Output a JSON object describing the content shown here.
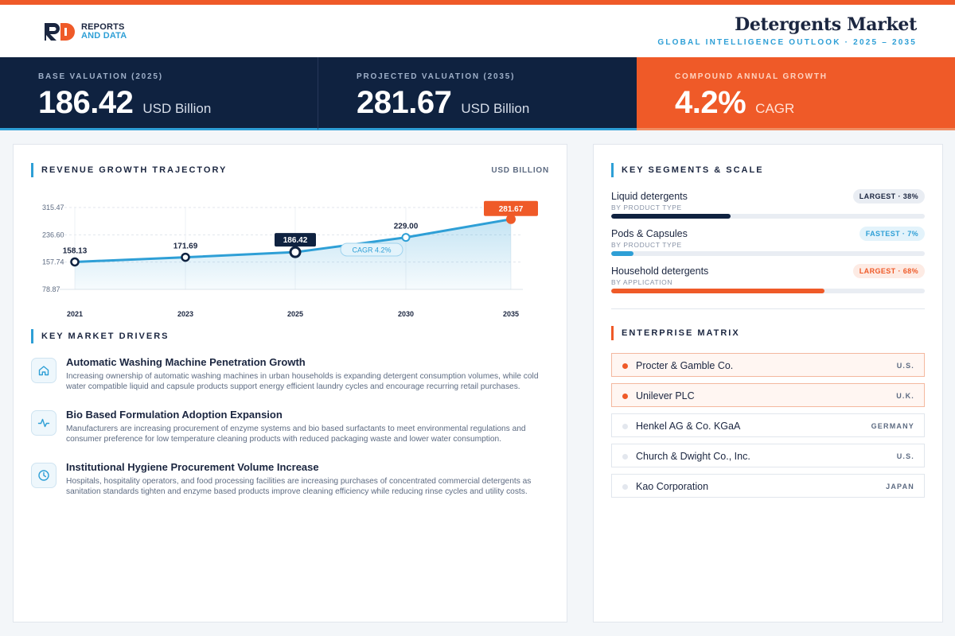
{
  "brand": {
    "line1": "REPORTS",
    "line2": "AND DATA",
    "colors": {
      "primary": "#1b2640",
      "accent": "#ef5a28",
      "blue": "#2e9fd6"
    }
  },
  "header": {
    "title": "Detergents Market",
    "subtitle": "GLOBAL INTELLIGENCE OUTLOOK  ·  2025 – 2035"
  },
  "kpis": [
    {
      "label": "BASE VALUATION (2025)",
      "value": "186.42",
      "unit": "USD Billion"
    },
    {
      "label": "PROJECTED VALUATION (2035)",
      "value": "281.67",
      "unit": "USD Billion"
    },
    {
      "label": "COMPOUND ANNUAL GROWTH",
      "value": "4.2%",
      "unit": "CAGR"
    }
  ],
  "chart_section": {
    "title": "REVENUE GROWTH TRAJECTORY",
    "unit": "USD BILLION"
  },
  "chart_data": {
    "type": "area",
    "categories": [
      "2021",
      "2023",
      "2025",
      "2030",
      "2035"
    ],
    "values": [
      158.13,
      171.69,
      186.42,
      229.0,
      281.67
    ],
    "labels": [
      "158.13",
      "171.69",
      "186.42",
      "229.00",
      "281.67"
    ],
    "yticks": [
      "315.47",
      "236.60",
      "157.74",
      "78.87"
    ],
    "ytick_values": [
      315.47,
      236.6,
      157.74,
      78.87
    ],
    "ylim": [
      78.87,
      315.47
    ],
    "grid": true,
    "annotation": "CAGR 4.2%",
    "highlight": {
      "base": "2025",
      "projected": "2035"
    }
  },
  "drivers_section": {
    "title": "KEY MARKET DRIVERS"
  },
  "drivers": [
    {
      "icon": "home-icon",
      "title": "Automatic Washing Machine Penetration Growth",
      "desc": "Increasing ownership of automatic washing machines in urban households is expanding detergent consumption volumes, while cold water compatible liquid and capsule products support energy efficient laundry cycles and encourage recurring retail purchases."
    },
    {
      "icon": "activity-icon",
      "title": "Bio Based Formulation Adoption Expansion",
      "desc": "Manufacturers are increasing procurement of enzyme systems and bio based surfactants to meet environmental regulations and consumer preference for low temperature cleaning products with reduced packaging waste and lower water consumption."
    },
    {
      "icon": "clock-icon",
      "title": "Institutional Hygiene Procurement Volume Increase",
      "desc": "Hospitals, hospitality operators, and food processing facilities are increasing purchases of concentrated commercial detergents as sanitation standards tighten and enzyme based products improve cleaning efficiency while reducing rinse cycles and utility costs."
    }
  ],
  "segments_section": {
    "title": "KEY SEGMENTS & SCALE"
  },
  "segments": [
    {
      "name": "Liquid detergents",
      "sub": "BY PRODUCT TYPE",
      "badge": "LARGEST · 38%",
      "share": 0.38,
      "style": "gray",
      "color": "#0f2240"
    },
    {
      "name": "Pods & Capsules",
      "sub": "BY PRODUCT TYPE",
      "badge": "FASTEST · 7%",
      "share": 0.07,
      "style": "blue",
      "color": "#2e9fd6"
    },
    {
      "name": "Household detergents",
      "sub": "BY APPLICATION",
      "badge": "LARGEST · 68%",
      "share": 0.68,
      "style": "peach",
      "color": "#ef5a28"
    }
  ],
  "matrix_section": {
    "title": "ENTERPRISE MATRIX"
  },
  "companies": [
    {
      "name": "Procter & Gamble Co.",
      "country": "U.S.",
      "highlight": true
    },
    {
      "name": "Unilever PLC",
      "country": "U.K.",
      "highlight": true
    },
    {
      "name": "Henkel AG & Co. KGaA",
      "country": "GERMANY",
      "highlight": false
    },
    {
      "name": "Church & Dwight Co., Inc.",
      "country": "U.S.",
      "highlight": false
    },
    {
      "name": "Kao Corporation",
      "country": "JAPAN",
      "highlight": false
    }
  ]
}
